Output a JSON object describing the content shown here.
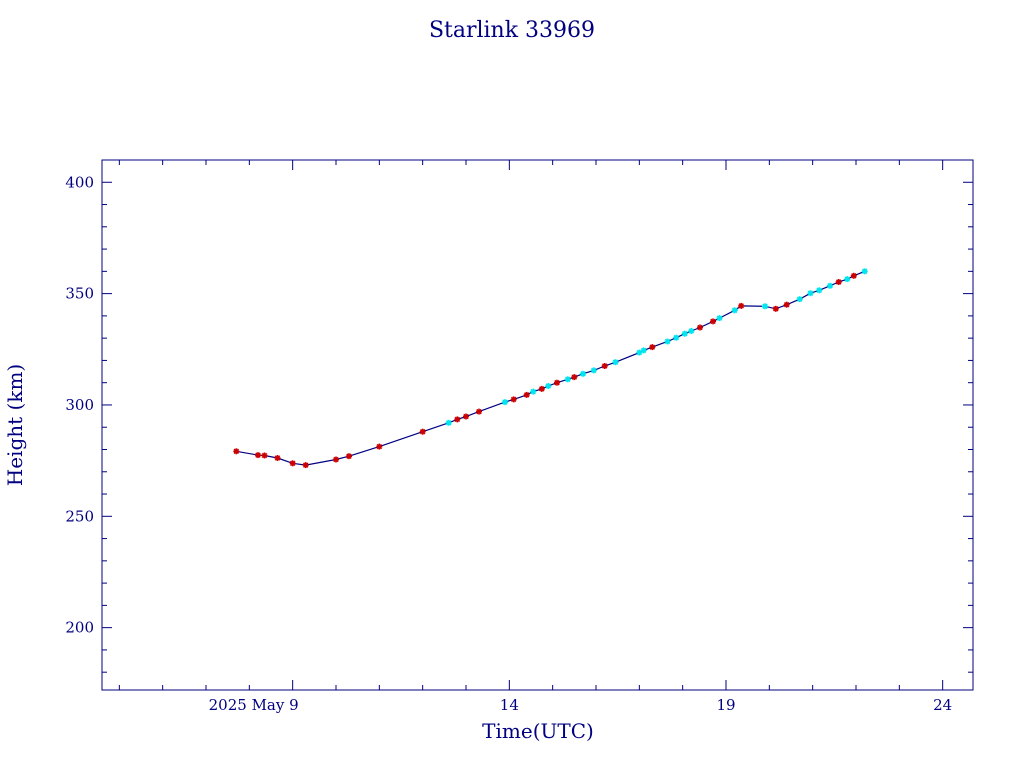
{
  "chart_data": {
    "type": "line",
    "title": "Starlink 33969",
    "xlabel": "Time(UTC)",
    "ylabel": "Height (km)",
    "x_unit": "day of May 2025 (UTC)",
    "xlim": [
      4.6,
      24.7
    ],
    "ylim": [
      172,
      410
    ],
    "x_ticks": [
      {
        "value": 9,
        "label": "2025 May  9"
      },
      {
        "value": 14,
        "label": "14"
      },
      {
        "value": 19,
        "label": "19"
      },
      {
        "value": 24,
        "label": "24"
      }
    ],
    "y_ticks": [
      {
        "value": 200,
        "label": "200"
      },
      {
        "value": 250,
        "label": "250"
      },
      {
        "value": 300,
        "label": "300"
      },
      {
        "value": 350,
        "label": "350"
      },
      {
        "value": 400,
        "label": "400"
      }
    ],
    "grid": false,
    "colors": {
      "line": "#000080",
      "marker_red": "#cc0000",
      "marker_cyan": "#00e5ee",
      "text": "#000080"
    },
    "series": [
      {
        "points": [
          {
            "x": 7.7,
            "y": 279.2,
            "m": "red"
          },
          {
            "x": 8.2,
            "y": 277.5,
            "m": "red"
          },
          {
            "x": 8.35,
            "y": 277.3,
            "m": "red"
          },
          {
            "x": 8.65,
            "y": 276.2,
            "m": "red"
          },
          {
            "x": 9.0,
            "y": 273.8,
            "m": "red"
          },
          {
            "x": 9.3,
            "y": 273.0,
            "m": "red"
          },
          {
            "x": 10.0,
            "y": 275.5,
            "m": "red"
          },
          {
            "x": 10.3,
            "y": 277.0,
            "m": "red"
          },
          {
            "x": 11.0,
            "y": 281.3,
            "m": "red"
          },
          {
            "x": 12.0,
            "y": 288.0,
            "m": "red"
          },
          {
            "x": 12.6,
            "y": 292.0,
            "m": "cyan"
          },
          {
            "x": 12.8,
            "y": 293.5,
            "m": "red"
          },
          {
            "x": 13.0,
            "y": 294.8,
            "m": "red"
          },
          {
            "x": 13.3,
            "y": 297.0,
            "m": "red"
          },
          {
            "x": 13.9,
            "y": 301.3,
            "m": "cyan"
          },
          {
            "x": 14.1,
            "y": 302.5,
            "m": "red"
          },
          {
            "x": 14.4,
            "y": 304.5,
            "m": "red"
          },
          {
            "x": 14.55,
            "y": 306.0,
            "m": "cyan"
          },
          {
            "x": 14.75,
            "y": 307.2,
            "m": "red"
          },
          {
            "x": 14.9,
            "y": 308.5,
            "m": "cyan"
          },
          {
            "x": 15.1,
            "y": 310.0,
            "m": "red"
          },
          {
            "x": 15.35,
            "y": 311.5,
            "m": "cyan"
          },
          {
            "x": 15.5,
            "y": 312.5,
            "m": "red"
          },
          {
            "x": 15.7,
            "y": 314.0,
            "m": "cyan"
          },
          {
            "x": 15.95,
            "y": 315.5,
            "m": "cyan"
          },
          {
            "x": 16.2,
            "y": 317.5,
            "m": "red"
          },
          {
            "x": 16.45,
            "y": 319.2,
            "m": "cyan"
          },
          {
            "x": 17.0,
            "y": 323.5,
            "m": "cyan"
          },
          {
            "x": 17.1,
            "y": 324.5,
            "m": "cyan"
          },
          {
            "x": 17.3,
            "y": 326.0,
            "m": "red"
          },
          {
            "x": 17.65,
            "y": 328.5,
            "m": "cyan"
          },
          {
            "x": 17.85,
            "y": 330.2,
            "m": "cyan"
          },
          {
            "x": 18.05,
            "y": 332.0,
            "m": "cyan"
          },
          {
            "x": 18.2,
            "y": 333.2,
            "m": "cyan"
          },
          {
            "x": 18.4,
            "y": 334.8,
            "m": "red"
          },
          {
            "x": 18.7,
            "y": 337.5,
            "m": "red"
          },
          {
            "x": 18.85,
            "y": 339.0,
            "m": "cyan"
          },
          {
            "x": 19.2,
            "y": 342.5,
            "m": "cyan"
          },
          {
            "x": 19.35,
            "y": 344.5,
            "m": "red"
          },
          {
            "x": 19.9,
            "y": 344.3,
            "m": "cyan"
          },
          {
            "x": 20.15,
            "y": 343.2,
            "m": "red"
          },
          {
            "x": 20.4,
            "y": 345.0,
            "m": "red"
          },
          {
            "x": 20.7,
            "y": 347.5,
            "m": "cyan"
          },
          {
            "x": 20.95,
            "y": 350.2,
            "m": "cyan"
          },
          {
            "x": 21.15,
            "y": 351.5,
            "m": "cyan"
          },
          {
            "x": 21.4,
            "y": 353.5,
            "m": "cyan"
          },
          {
            "x": 21.6,
            "y": 355.2,
            "m": "red"
          },
          {
            "x": 21.8,
            "y": 356.5,
            "m": "cyan"
          },
          {
            "x": 21.95,
            "y": 358.0,
            "m": "red"
          },
          {
            "x": 22.2,
            "y": 360.0,
            "m": "cyan"
          }
        ]
      }
    ]
  }
}
